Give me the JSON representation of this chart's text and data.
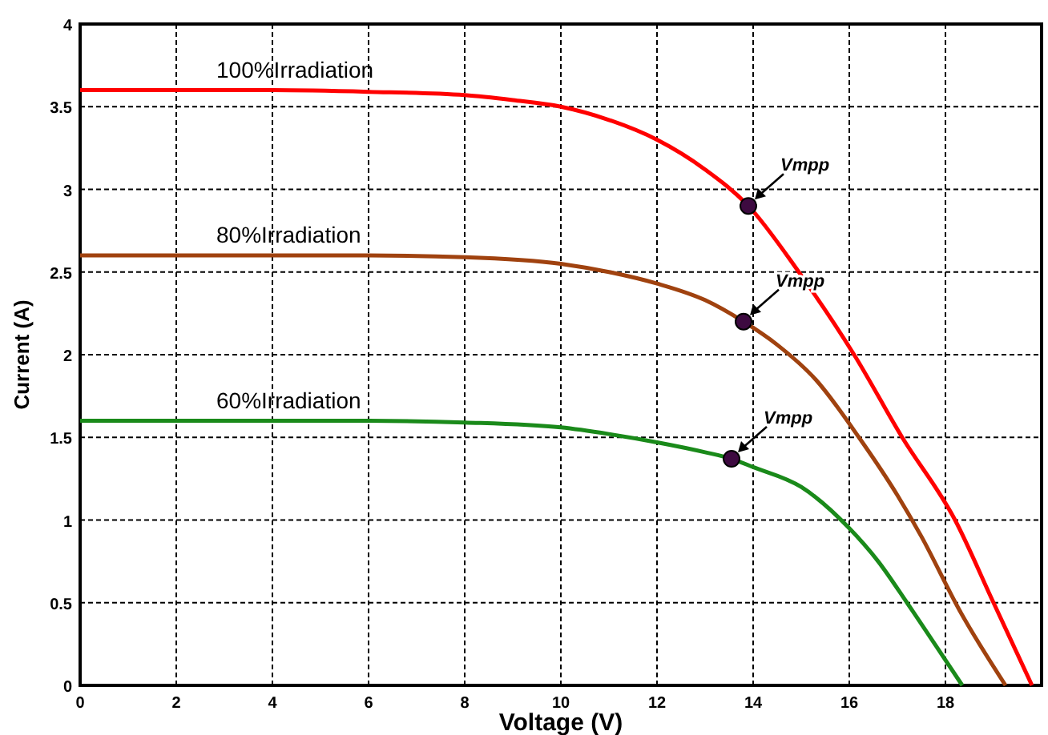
{
  "chart_data": {
    "type": "line",
    "xlabel": "Voltage (V)",
    "ylabel": "Current (A)",
    "xlim": [
      0,
      20
    ],
    "ylim": [
      0,
      4
    ],
    "xticks": [
      0,
      2,
      4,
      6,
      8,
      10,
      12,
      14,
      16,
      18
    ],
    "yticks": [
      0,
      0.5,
      1,
      1.5,
      2,
      2.5,
      3,
      3.5,
      4
    ],
    "grid": true,
    "marker": "none",
    "line_style": "solid",
    "series": [
      {
        "name": "100%Irradiation",
        "color": "#ff0000",
        "x": [
          0,
          2,
          4,
          6,
          8,
          9,
          10,
          11,
          12,
          13,
          13.9,
          14.95,
          16.1,
          17.1,
          18.2,
          19,
          19.8
        ],
        "values": [
          3.6,
          3.6,
          3.6,
          3.59,
          3.57,
          3.54,
          3.5,
          3.42,
          3.3,
          3.12,
          2.9,
          2.5,
          2,
          1.5,
          1,
          0.5,
          0
        ]
      },
      {
        "name": "80%Irradiation",
        "color": "#a0420f",
        "x": [
          0,
          2,
          4,
          6,
          8,
          10,
          11,
          12,
          13,
          13.8,
          14.5,
          15.3,
          16.2,
          17,
          17.5,
          18.3,
          19.25
        ],
        "values": [
          2.6,
          2.6,
          2.6,
          2.6,
          2.59,
          2.55,
          2.5,
          2.43,
          2.33,
          2.2,
          2.06,
          1.85,
          1.5,
          1.15,
          0.9,
          0.45,
          0
        ]
      },
      {
        "name": "60%Irradiation",
        "color": "#1a8a1a",
        "x": [
          0,
          2,
          4,
          6,
          8,
          10,
          11,
          12,
          13,
          13.55,
          14,
          15,
          16,
          16.6,
          17.2,
          17.8,
          18.35
        ],
        "values": [
          1.6,
          1.6,
          1.6,
          1.6,
          1.59,
          1.56,
          1.52,
          1.47,
          1.41,
          1.37,
          1.32,
          1.2,
          0.95,
          0.75,
          0.5,
          0.24,
          0
        ]
      },
      {
        "type": "scatter",
        "color": "#3d0a40",
        "marker": "circle",
        "x": [
          13.9,
          13.8,
          13.55
        ],
        "values": [
          2.9,
          2.2,
          1.37
        ]
      }
    ],
    "annotations": [
      {
        "text": "Vmpp",
        "x": 13.9,
        "y": 2.9
      },
      {
        "text": "Vmpp",
        "x": 13.8,
        "y": 2.2
      },
      {
        "text": "Vmpp",
        "x": 13.55,
        "y": 1.37
      }
    ]
  }
}
